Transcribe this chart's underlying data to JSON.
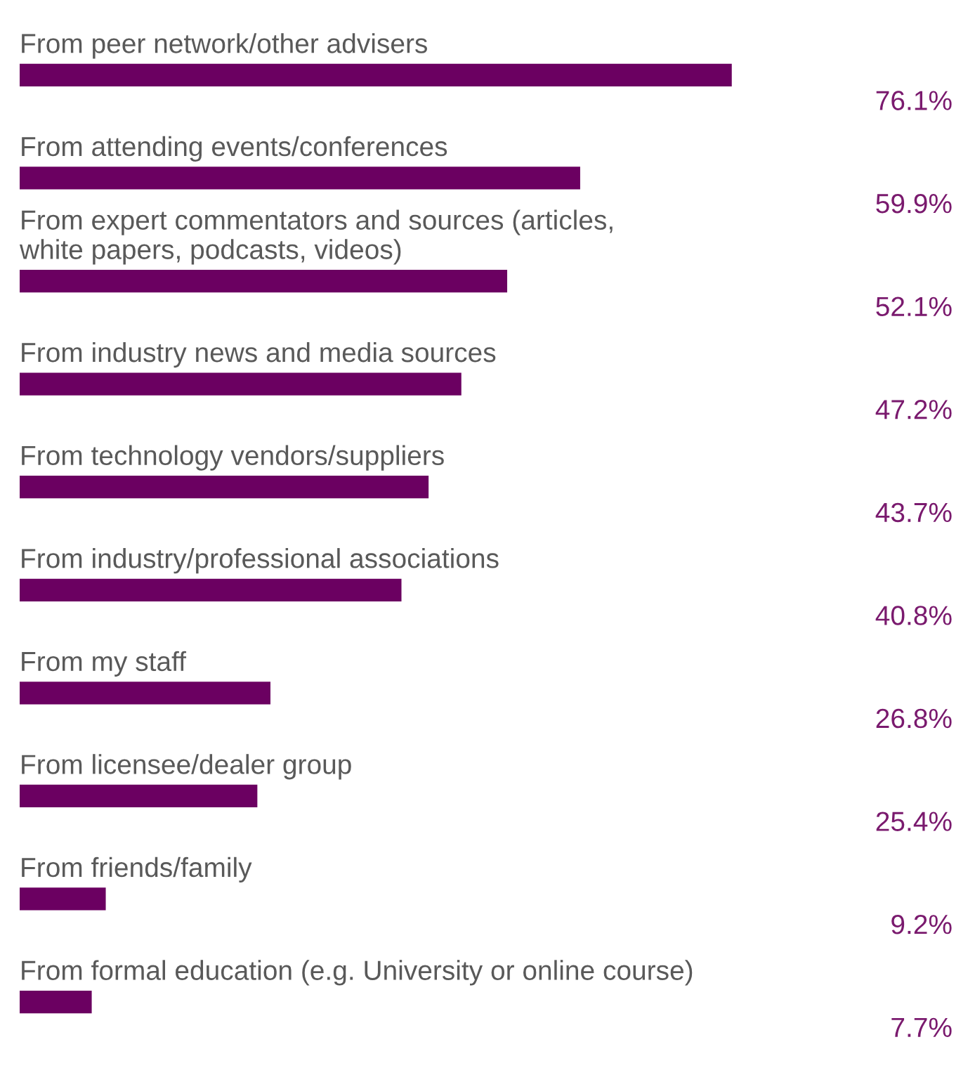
{
  "chart_data": {
    "type": "bar",
    "orientation": "horizontal",
    "categories": [
      "From peer network/other advisers",
      "From attending events/conferences",
      "From expert commentators and sources (articles,\nwhite papers, podcasts, videos)",
      "From industry news and media sources",
      "From technology vendors/suppliers",
      "From industry/professional associations",
      "From my staff",
      "From licensee/dealer group",
      "From friends/family",
      "From formal education (e.g. University or online course)"
    ],
    "values": [
      76.1,
      59.9,
      52.1,
      47.2,
      43.7,
      40.8,
      26.8,
      25.4,
      9.2,
      7.7
    ],
    "value_labels": [
      "76.1%",
      "59.9%",
      "52.1%",
      "47.2%",
      "43.7%",
      "40.8%",
      "26.8%",
      "25.4%",
      "9.2%",
      "7.7%"
    ],
    "color": "#6b0061"
  }
}
